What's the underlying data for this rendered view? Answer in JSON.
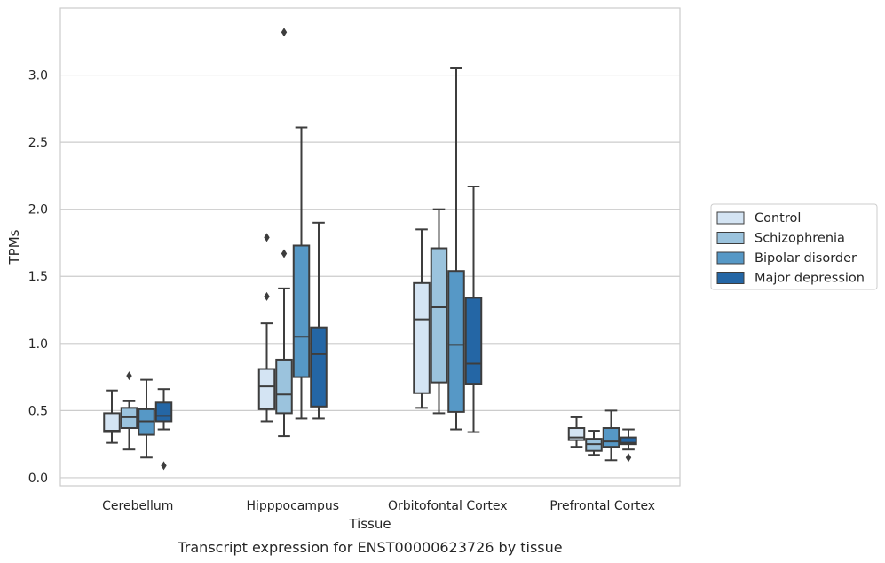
{
  "caption": "Transcript expression for ENST00000623726 by tissue",
  "chart_data": {
    "type": "box",
    "xlabel": "Tissue",
    "ylabel": "TPMs",
    "ylim": [
      -0.06,
      3.5
    ],
    "yticks": [
      0.0,
      0.5,
      1.0,
      1.5,
      2.0,
      2.5,
      3.0
    ],
    "ytick_labels": [
      "0.0",
      "0.5",
      "1.0",
      "1.5",
      "2.0",
      "2.5",
      "3.0"
    ],
    "grid": "horizontal",
    "legend_position": "right",
    "categories": [
      "Cerebellum",
      "Hipppocampus",
      "Orbitofontal Cortex",
      "Prefrontal Cortex"
    ],
    "series": [
      {
        "name": "Control",
        "color": "#d4e4f3",
        "boxes": [
          {
            "whislo": 0.26,
            "q1": 0.34,
            "med": 0.35,
            "q3": 0.48,
            "whishi": 0.65,
            "fliers": []
          },
          {
            "whislo": 0.42,
            "q1": 0.51,
            "med": 0.68,
            "q3": 0.81,
            "whishi": 1.15,
            "fliers": [
              1.35,
              1.79
            ]
          },
          {
            "whislo": 0.52,
            "q1": 0.63,
            "med": 1.18,
            "q3": 1.45,
            "whishi": 1.85,
            "fliers": []
          },
          {
            "whislo": 0.23,
            "q1": 0.28,
            "med": 0.3,
            "q3": 0.37,
            "whishi": 0.45,
            "fliers": []
          }
        ]
      },
      {
        "name": "Schizophrenia",
        "color": "#9bc3dd",
        "boxes": [
          {
            "whislo": 0.21,
            "q1": 0.37,
            "med": 0.45,
            "q3": 0.52,
            "whishi": 0.57,
            "fliers": [
              0.76
            ]
          },
          {
            "whislo": 0.31,
            "q1": 0.48,
            "med": 0.62,
            "q3": 0.88,
            "whishi": 1.41,
            "fliers": [
              1.67,
              3.32
            ]
          },
          {
            "whislo": 0.48,
            "q1": 0.71,
            "med": 1.27,
            "q3": 1.71,
            "whishi": 2.0,
            "fliers": []
          },
          {
            "whislo": 0.17,
            "q1": 0.2,
            "med": 0.25,
            "q3": 0.29,
            "whishi": 0.35,
            "fliers": []
          }
        ]
      },
      {
        "name": "Bipolar disorder",
        "color": "#5698c6",
        "boxes": [
          {
            "whislo": 0.15,
            "q1": 0.32,
            "med": 0.42,
            "q3": 0.51,
            "whishi": 0.73,
            "fliers": []
          },
          {
            "whislo": 0.44,
            "q1": 0.75,
            "med": 1.05,
            "q3": 1.73,
            "whishi": 2.61,
            "fliers": []
          },
          {
            "whislo": 0.36,
            "q1": 0.49,
            "med": 0.99,
            "q3": 1.54,
            "whishi": 3.05,
            "fliers": []
          },
          {
            "whislo": 0.13,
            "q1": 0.23,
            "med": 0.27,
            "q3": 0.37,
            "whishi": 0.5,
            "fliers": []
          }
        ]
      },
      {
        "name": "Major depression",
        "color": "#2466a5",
        "boxes": [
          {
            "whislo": 0.36,
            "q1": 0.42,
            "med": 0.46,
            "q3": 0.56,
            "whishi": 0.66,
            "fliers": [
              0.09
            ]
          },
          {
            "whislo": 0.44,
            "q1": 0.53,
            "med": 0.92,
            "q3": 1.12,
            "whishi": 1.9,
            "fliers": []
          },
          {
            "whislo": 0.34,
            "q1": 0.7,
            "med": 0.85,
            "q3": 1.34,
            "whishi": 2.17,
            "fliers": []
          },
          {
            "whislo": 0.21,
            "q1": 0.25,
            "med": 0.26,
            "q3": 0.3,
            "whishi": 0.36,
            "fliers": [
              0.15
            ]
          }
        ]
      }
    ]
  }
}
